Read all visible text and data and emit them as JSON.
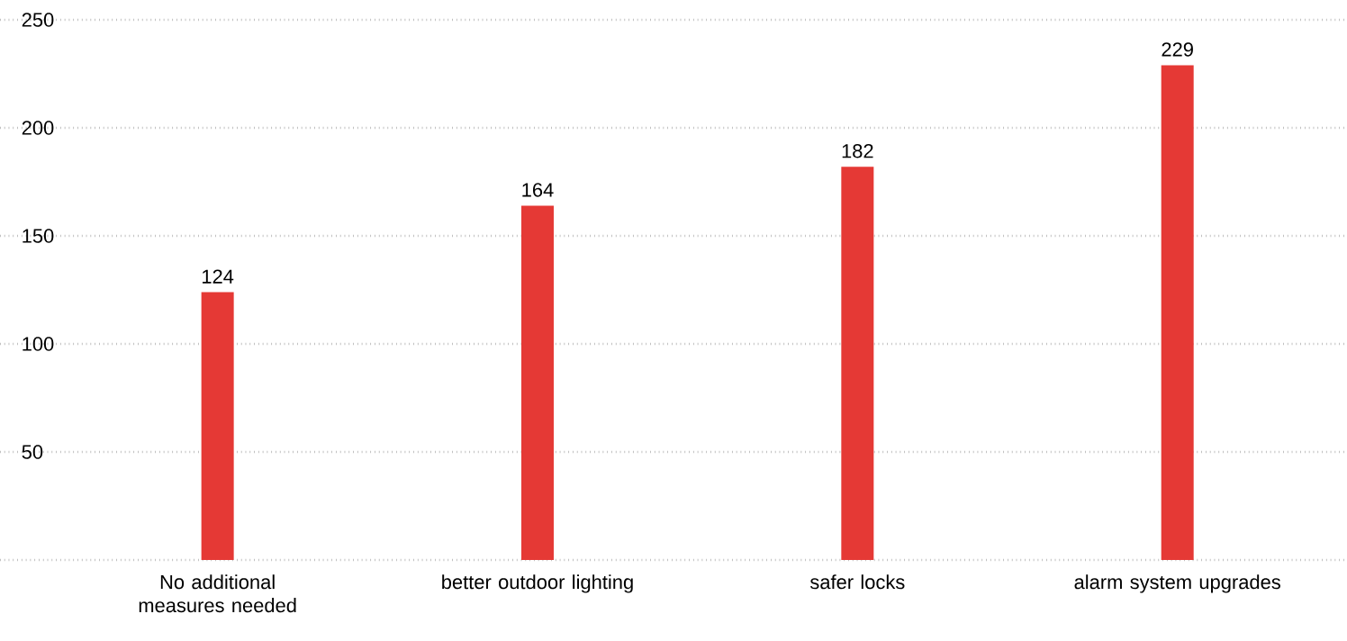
{
  "chart_data": {
    "type": "bar",
    "categories": [
      "No additional measures needed",
      "better outdoor lighting",
      "safer locks",
      "alarm system upgrades"
    ],
    "values": [
      124,
      164,
      182,
      229
    ],
    "color": "#e53935",
    "ylim": [
      0,
      250
    ],
    "yticks": [
      {
        "value": 0,
        "label": null
      },
      50,
      100,
      150,
      200,
      250
    ],
    "grid": "y",
    "data_labels": true
  }
}
